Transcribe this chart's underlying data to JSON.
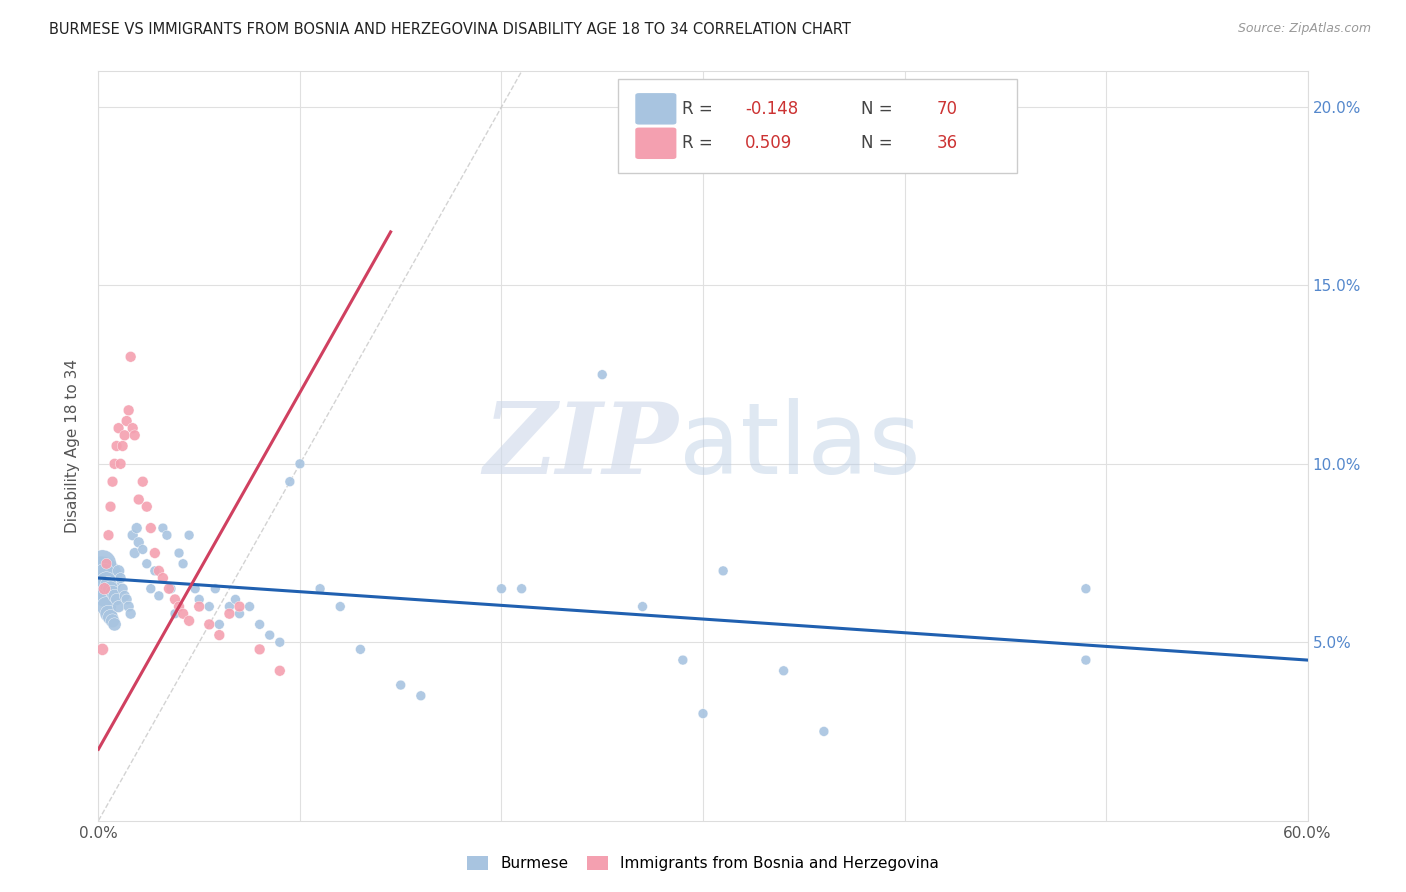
{
  "title": "BURMESE VS IMMIGRANTS FROM BOSNIA AND HERZEGOVINA DISABILITY AGE 18 TO 34 CORRELATION CHART",
  "source": "Source: ZipAtlas.com",
  "ylabel": "Disability Age 18 to 34",
  "xlim": [
    0.0,
    0.6
  ],
  "ylim": [
    0.0,
    0.21
  ],
  "ytick_labels_right": [
    "5.0%",
    "10.0%",
    "15.0%",
    "20.0%"
  ],
  "ytick_vals": [
    0.05,
    0.1,
    0.15,
    0.2
  ],
  "burmese_color": "#a8c4e0",
  "bosnia_color": "#f4a0b0",
  "burmese_line_color": "#2060b0",
  "bosnia_line_color": "#d04060",
  "diagonal_color": "#c8c8c8",
  "legend_burmese_R": "-0.148",
  "legend_burmese_N": "70",
  "legend_bosnia_R": "0.509",
  "legend_bosnia_N": "36",
  "burmese_x": [
    0.001,
    0.002,
    0.002,
    0.003,
    0.003,
    0.004,
    0.004,
    0.005,
    0.005,
    0.006,
    0.006,
    0.007,
    0.007,
    0.008,
    0.008,
    0.009,
    0.01,
    0.01,
    0.011,
    0.012,
    0.013,
    0.014,
    0.015,
    0.016,
    0.017,
    0.018,
    0.019,
    0.02,
    0.022,
    0.024,
    0.026,
    0.028,
    0.03,
    0.032,
    0.034,
    0.036,
    0.038,
    0.04,
    0.042,
    0.045,
    0.048,
    0.05,
    0.055,
    0.058,
    0.06,
    0.065,
    0.068,
    0.07,
    0.075,
    0.08,
    0.085,
    0.09,
    0.095,
    0.1,
    0.11,
    0.12,
    0.13,
    0.15,
    0.16,
    0.2,
    0.21,
    0.25,
    0.27,
    0.29,
    0.3,
    0.31,
    0.34,
    0.36,
    0.49,
    0.49
  ],
  "burmese_y": [
    0.068,
    0.072,
    0.065,
    0.069,
    0.063,
    0.067,
    0.06,
    0.066,
    0.058,
    0.065,
    0.057,
    0.064,
    0.056,
    0.063,
    0.055,
    0.062,
    0.07,
    0.06,
    0.068,
    0.065,
    0.063,
    0.062,
    0.06,
    0.058,
    0.08,
    0.075,
    0.082,
    0.078,
    0.076,
    0.072,
    0.065,
    0.07,
    0.063,
    0.082,
    0.08,
    0.065,
    0.058,
    0.075,
    0.072,
    0.08,
    0.065,
    0.062,
    0.06,
    0.065,
    0.055,
    0.06,
    0.062,
    0.058,
    0.06,
    0.055,
    0.052,
    0.05,
    0.095,
    0.1,
    0.065,
    0.06,
    0.048,
    0.038,
    0.035,
    0.065,
    0.065,
    0.125,
    0.06,
    0.045,
    0.03,
    0.07,
    0.042,
    0.025,
    0.065,
    0.045
  ],
  "burmese_size": [
    200,
    80,
    80,
    50,
    50,
    40,
    40,
    30,
    30,
    25,
    25,
    20,
    20,
    18,
    18,
    15,
    15,
    15,
    12,
    12,
    12,
    12,
    12,
    12,
    12,
    12,
    12,
    12,
    10,
    10,
    10,
    10,
    10,
    10,
    10,
    10,
    10,
    10,
    10,
    10,
    10,
    10,
    10,
    10,
    10,
    10,
    10,
    10,
    10,
    10,
    10,
    10,
    10,
    10,
    10,
    10,
    10,
    10,
    10,
    10,
    10,
    10,
    10,
    10,
    10,
    10,
    10,
    10,
    10,
    10
  ],
  "bosnia_x": [
    0.002,
    0.003,
    0.004,
    0.005,
    0.006,
    0.007,
    0.008,
    0.009,
    0.01,
    0.011,
    0.012,
    0.013,
    0.014,
    0.015,
    0.016,
    0.017,
    0.018,
    0.02,
    0.022,
    0.024,
    0.026,
    0.028,
    0.03,
    0.032,
    0.035,
    0.038,
    0.04,
    0.042,
    0.045,
    0.05,
    0.055,
    0.06,
    0.065,
    0.07,
    0.08,
    0.09
  ],
  "bosnia_y": [
    0.048,
    0.065,
    0.072,
    0.08,
    0.088,
    0.095,
    0.1,
    0.105,
    0.11,
    0.1,
    0.105,
    0.108,
    0.112,
    0.115,
    0.13,
    0.11,
    0.108,
    0.09,
    0.095,
    0.088,
    0.082,
    0.075,
    0.07,
    0.068,
    0.065,
    0.062,
    0.06,
    0.058,
    0.056,
    0.06,
    0.055,
    0.052,
    0.058,
    0.06,
    0.048,
    0.042
  ],
  "bosnia_size": [
    15,
    15,
    12,
    12,
    12,
    12,
    12,
    12,
    12,
    12,
    12,
    12,
    12,
    12,
    12,
    12,
    12,
    12,
    12,
    12,
    12,
    12,
    12,
    12,
    12,
    12,
    12,
    12,
    12,
    12,
    12,
    12,
    12,
    12,
    12,
    12
  ]
}
